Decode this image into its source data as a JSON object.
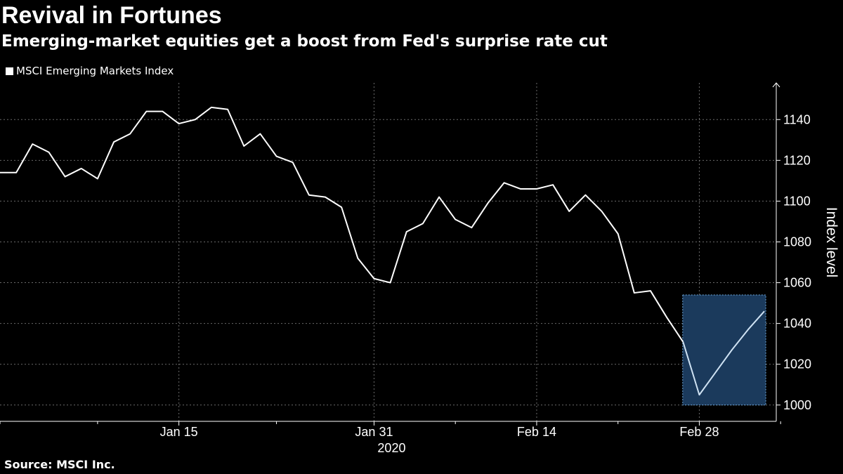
{
  "title": "Revival in Fortunes",
  "subtitle": "Emerging-market equities get a boost from Fed's surprise rate cut",
  "legend": {
    "label": "MSCI Emerging Markets Index",
    "swatch_color": "#ffffff"
  },
  "source": "Source: MSCI Inc.",
  "colors": {
    "background": "#000000",
    "line": "#ffffff",
    "highlight_fill": "#1b3a5c",
    "highlight_border": "#6fa8dc",
    "highlight_line": "#cfe2f3",
    "grid": "#6a6a6a"
  },
  "chart_data": {
    "type": "line",
    "title": "Revival in Fortunes",
    "subtitle": "Emerging-market equities get a boost from Fed's surprise rate cut",
    "xlabel": "",
    "ylabel": "Index level",
    "ylim": [
      992,
      1158
    ],
    "yticks": [
      1000,
      1020,
      1040,
      1060,
      1080,
      1100,
      1120,
      1140
    ],
    "year_label": "2020",
    "xticks": [
      {
        "label": "Jan 15",
        "index": 11
      },
      {
        "label": "Jan 31",
        "index": 23
      },
      {
        "label": "Feb 14",
        "index": 33
      },
      {
        "label": "Feb 28",
        "index": 43
      }
    ],
    "minor_ticks": [
      0,
      6,
      17,
      28,
      38,
      48
    ],
    "grid": true,
    "legend_position": "top-left",
    "highlight": {
      "start_index": 42,
      "end_index": 47,
      "y_range": [
        1000,
        1054
      ]
    },
    "series": [
      {
        "name": "MSCI Emerging Markets Index",
        "values": [
          1114,
          1114,
          1128,
          1124,
          1112,
          1116,
          1111,
          1129,
          1133,
          1144,
          1144,
          1138,
          1140,
          1146,
          1145,
          1127,
          1133,
          1122,
          1119,
          1103,
          1102,
          1097,
          1072,
          1062,
          1060,
          1085,
          1089,
          1102,
          1091,
          1087,
          1099,
          1109,
          1106,
          1106,
          1108,
          1095,
          1103,
          1095,
          1084,
          1055,
          1056,
          1043,
          1031,
          1005,
          1016,
          1027,
          1037,
          1046
        ]
      }
    ]
  }
}
